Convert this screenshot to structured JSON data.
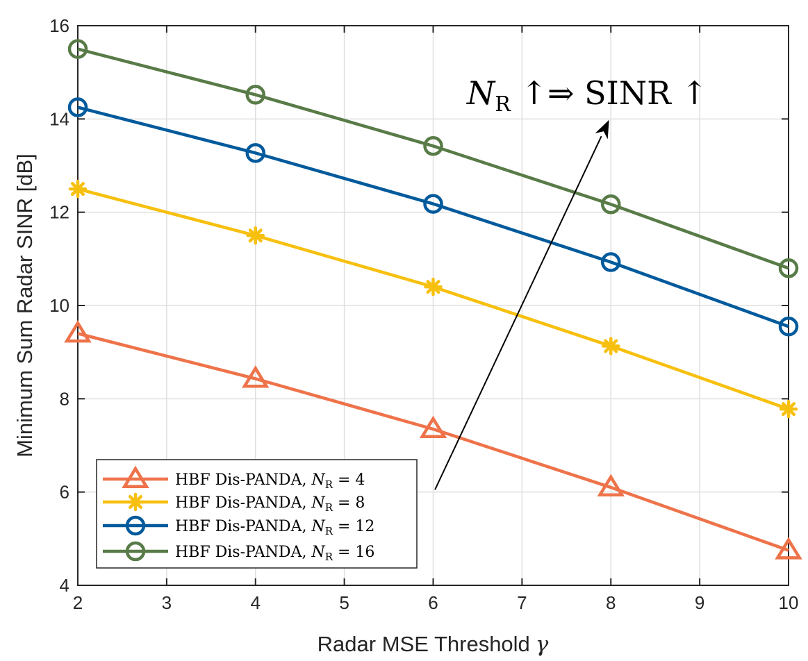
{
  "chart_data": {
    "type": "line",
    "xlabel": "Radar MSE Threshold",
    "xlabel_symbol": "γ",
    "ylabel": "Minimum Sum Radar SINR [dB]",
    "xlim": [
      2,
      10
    ],
    "ylim": [
      4,
      16
    ],
    "xticks": [
      2,
      3,
      4,
      5,
      6,
      7,
      8,
      9,
      10
    ],
    "yticks": [
      4,
      6,
      8,
      10,
      12,
      14,
      16
    ],
    "grid": true,
    "legend_position": "bottom-left",
    "x": [
      2,
      4,
      6,
      8,
      10
    ],
    "series": [
      {
        "name": "HBF Dis-PANDA, ",
        "symbol": "N",
        "subscript": "R",
        "value_text": " = 4",
        "values": [
          9.4,
          8.43,
          7.35,
          6.1,
          4.75
        ],
        "color": "#ee734a",
        "marker": "triangle"
      },
      {
        "name": "HBF Dis-PANDA, ",
        "symbol": "N",
        "subscript": "R",
        "value_text": " = 8",
        "values": [
          12.5,
          11.5,
          10.4,
          9.13,
          7.78
        ],
        "color": "#f7c00f",
        "marker": "asterisk"
      },
      {
        "name": "HBF Dis-PANDA, ",
        "symbol": "N",
        "subscript": "R",
        "value_text": " = 12",
        "values": [
          14.25,
          13.27,
          12.18,
          10.93,
          9.55
        ],
        "color": "#005a9c",
        "marker": "circle"
      },
      {
        "name": "HBF Dis-PANDA, ",
        "symbol": "N",
        "subscript": "R",
        "value_text": " = 16",
        "values": [
          15.5,
          14.52,
          13.42,
          12.17,
          10.8
        ],
        "color": "#587b47",
        "marker": "circle"
      }
    ],
    "annotation": {
      "symbol": "N",
      "subscript": "R",
      "text": " ↑⇒ SINR ↑",
      "arrow_from": [
        6.02,
        6.05
      ],
      "arrow_to": [
        7.98,
        13.98
      ]
    }
  }
}
